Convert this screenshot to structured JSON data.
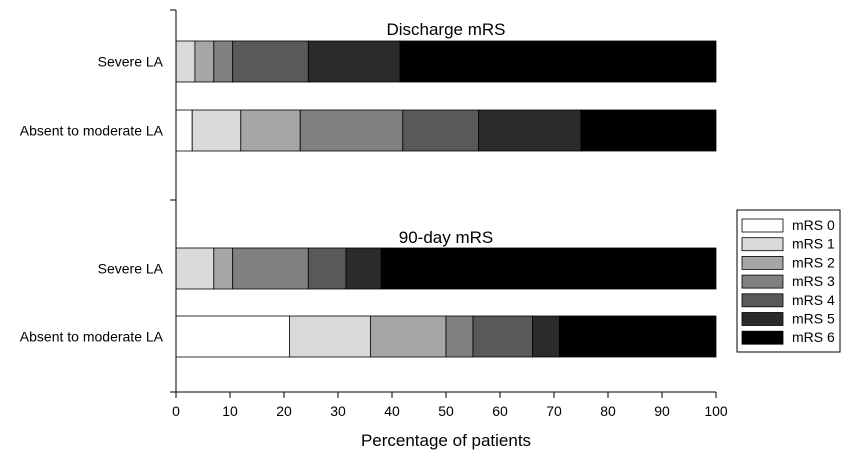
{
  "chart_data": {
    "type": "bar",
    "orientation": "horizontal",
    "stacked": true,
    "xlabel": "Percentage of patients",
    "xlim": [
      0,
      100
    ],
    "xticks": [
      0,
      10,
      20,
      30,
      40,
      50,
      60,
      70,
      80,
      90,
      100
    ],
    "grid": false,
    "legend_position": "right",
    "categories": [
      "mRS 0",
      "mRS 1",
      "mRS 2",
      "mRS 3",
      "mRS 4",
      "mRS 5",
      "mRS 6"
    ],
    "colors": [
      "#ffffff",
      "#d9d9d9",
      "#a6a6a6",
      "#808080",
      "#595959",
      "#2b2b2b",
      "#000000"
    ],
    "panels": [
      {
        "title": "Discharge mRS",
        "rows": [
          {
            "label": "Severe LA",
            "values": [
              0,
              3.5,
              3.5,
              3.5,
              14,
              17,
              58.5
            ]
          },
          {
            "label": "Absent to moderate LA",
            "values": [
              3,
              9,
              11,
              19,
              14,
              19,
              25
            ]
          }
        ]
      },
      {
        "title": "90-day mRS",
        "rows": [
          {
            "label": "Severe LA",
            "values": [
              0,
              7,
              3.5,
              14,
              7,
              6.5,
              62
            ]
          },
          {
            "label": "Absent to moderate LA",
            "values": [
              21,
              15,
              14,
              5,
              11,
              5,
              29
            ]
          }
        ]
      }
    ]
  }
}
